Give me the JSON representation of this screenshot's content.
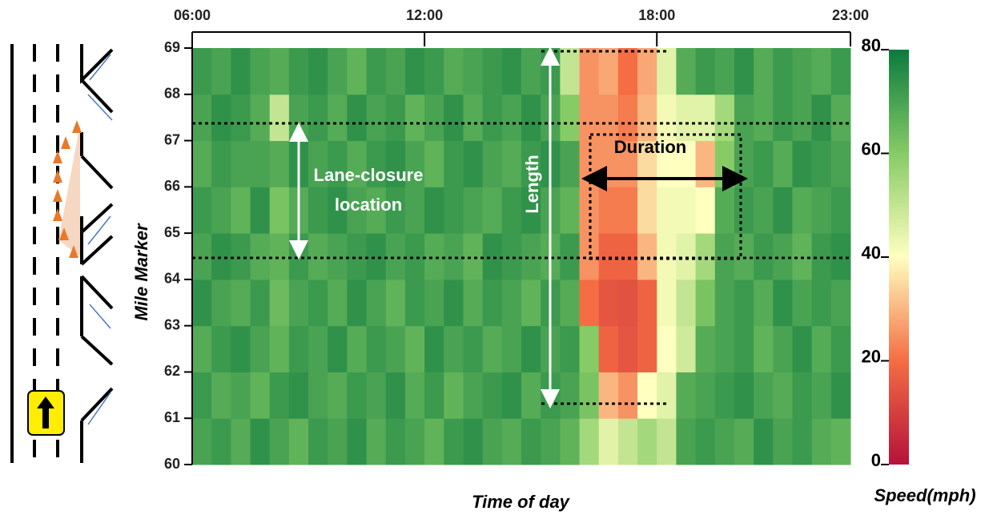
{
  "chart_data": {
    "type": "heatmap",
    "x_label": "Time of day",
    "y_label": "Mile Marker",
    "colorbar_label": "Speed(mph)",
    "annotations": [
      "Lane-closure",
      "location",
      "Length",
      "Duration"
    ],
    "xlim": [
      6,
      23
    ],
    "xticks": [
      {
        "value": 6,
        "label": "06:00"
      },
      {
        "value": 12,
        "label": "12:00"
      },
      {
        "value": 18,
        "label": "18:00"
      },
      {
        "value": 23,
        "label": "23:00"
      }
    ],
    "ylim": [
      60,
      69
    ],
    "yticks": [
      60,
      61,
      62,
      63,
      64,
      65,
      66,
      67,
      68,
      69
    ],
    "clim": [
      0,
      80
    ],
    "cticks": [
      0,
      20,
      40,
      60,
      80
    ],
    "colorscale": [
      "#b5123a",
      "#f46d43",
      "#ffffbf",
      "#86cb66",
      "#0b7a3e"
    ],
    "x": [
      6,
      6.5,
      7,
      7.5,
      8,
      8.5,
      9,
      9.5,
      10,
      10.5,
      11,
      11.5,
      12,
      12.5,
      13,
      13.5,
      14,
      14.5,
      15,
      15.5,
      16,
      16.5,
      17,
      17.5,
      18,
      18.5,
      19,
      19.5,
      20,
      20.5,
      21,
      21.5,
      22,
      22.5
    ],
    "y": [
      60,
      61,
      62,
      63,
      64,
      65,
      66,
      67,
      68
    ],
    "values": [
      [
        70,
        72,
        68,
        74,
        70,
        66,
        72,
        70,
        74,
        68,
        72,
        70,
        66,
        72,
        74,
        70,
        68,
        72,
        70,
        66,
        55,
        45,
        50,
        55,
        50,
        70,
        72,
        70,
        68,
        74,
        70,
        72,
        68,
        66
      ],
      [
        72,
        68,
        70,
        66,
        72,
        74,
        70,
        68,
        72,
        70,
        74,
        68,
        72,
        66,
        70,
        72,
        74,
        68,
        72,
        70,
        62,
        30,
        25,
        40,
        45,
        68,
        70,
        72,
        74,
        70,
        68,
        72,
        70,
        74
      ],
      [
        68,
        72,
        74,
        70,
        66,
        72,
        70,
        74,
        68,
        72,
        70,
        66,
        74,
        70,
        72,
        68,
        70,
        74,
        70,
        72,
        60,
        18,
        15,
        18,
        40,
        48,
        68,
        70,
        72,
        66,
        70,
        74,
        68,
        72
      ],
      [
        74,
        70,
        68,
        72,
        64,
        70,
        72,
        68,
        74,
        70,
        66,
        72,
        70,
        74,
        68,
        72,
        70,
        66,
        72,
        68,
        20,
        15,
        14,
        18,
        42,
        50,
        62,
        70,
        72,
        68,
        74,
        70,
        72,
        70
      ],
      [
        70,
        74,
        72,
        68,
        66,
        72,
        68,
        70,
        72,
        74,
        70,
        72,
        68,
        70,
        66,
        74,
        72,
        70,
        68,
        72,
        25,
        18,
        18,
        30,
        42,
        45,
        55,
        70,
        68,
        72,
        70,
        66,
        72,
        74
      ],
      [
        72,
        70,
        66,
        74,
        62,
        68,
        72,
        74,
        70,
        68,
        72,
        70,
        74,
        72,
        70,
        68,
        72,
        74,
        70,
        66,
        25,
        22,
        22,
        35,
        42,
        42,
        40,
        68,
        72,
        70,
        74,
        68,
        70,
        72
      ],
      [
        68,
        72,
        70,
        70,
        68,
        74,
        70,
        72,
        68,
        72,
        74,
        70,
        66,
        72,
        74,
        70,
        68,
        72,
        74,
        70,
        25,
        25,
        25,
        35,
        40,
        40,
        30,
        60,
        70,
        72,
        68,
        74,
        72,
        70
      ],
      [
        70,
        74,
        72,
        68,
        50,
        70,
        72,
        68,
        74,
        70,
        72,
        66,
        70,
        74,
        68,
        72,
        70,
        74,
        70,
        60,
        25,
        25,
        22,
        30,
        42,
        45,
        45,
        55,
        70,
        68,
        72,
        70,
        74,
        68
      ],
      [
        72,
        70,
        74,
        70,
        68,
        72,
        74,
        70,
        66,
        72,
        70,
        74,
        72,
        68,
        70,
        72,
        74,
        70,
        72,
        50,
        25,
        28,
        20,
        28,
        45,
        68,
        72,
        70,
        74,
        68,
        72,
        70,
        68,
        72
      ]
    ]
  }
}
